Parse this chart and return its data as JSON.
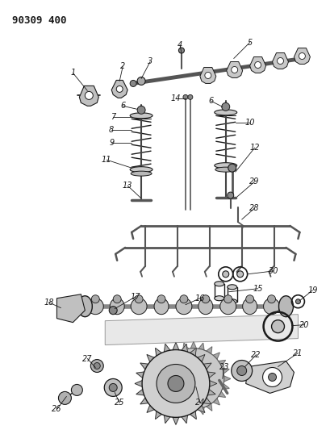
{
  "title": "90309 400",
  "bg": "#ffffff",
  "lc": "#1a1a1a",
  "fig_w": 4.09,
  "fig_h": 5.33,
  "dpi": 100
}
